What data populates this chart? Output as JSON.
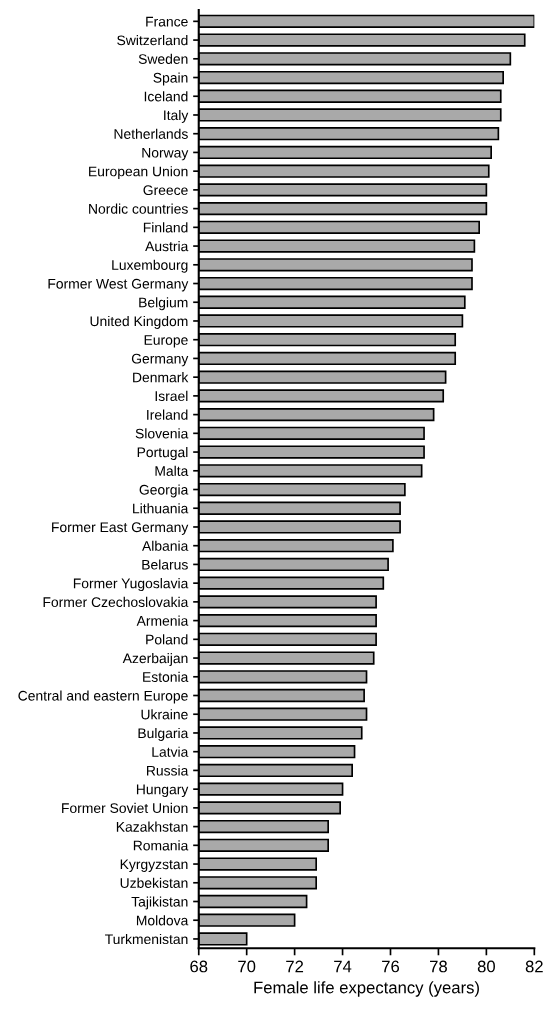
{
  "chart_data": {
    "type": "bar",
    "orientation": "horizontal",
    "xlabel": "Female life expectancy (years)",
    "categories": [
      "France",
      "Switzerland",
      "Sweden",
      "Spain",
      "Iceland",
      "Italy",
      "Netherlands",
      "Norway",
      "European Union",
      "Greece",
      "Nordic countries",
      "Finland",
      "Austria",
      "Luxembourg",
      "Former West Germany",
      "Belgium",
      "United Kingdom",
      "Europe",
      "Germany",
      "Denmark",
      "Israel",
      "Ireland",
      "Slovenia",
      "Portugal",
      "Malta",
      "Georgia",
      "Lithuania",
      "Former East Germany",
      "Albania",
      "Belarus",
      "Former Yugoslavia",
      "Former Czechoslovakia",
      "Armenia",
      "Poland",
      "Azerbaijan",
      "Estonia",
      "Central and eastern Europe",
      "Ukraine",
      "Bulgaria",
      "Latvia",
      "Russia",
      "Hungary",
      "Former Soviet Union",
      "Kazakhstan",
      "Romania",
      "Kyrgyzstan",
      "Uzbekistan",
      "Tajikistan",
      "Moldova",
      "Turkmenistan"
    ],
    "values": [
      82.0,
      81.6,
      81.0,
      80.7,
      80.6,
      80.6,
      80.5,
      80.2,
      80.1,
      80.0,
      80.0,
      79.7,
      79.5,
      79.4,
      79.4,
      79.1,
      79.0,
      78.7,
      78.7,
      78.3,
      78.2,
      77.8,
      77.4,
      77.4,
      77.3,
      76.6,
      76.4,
      76.4,
      76.1,
      75.9,
      75.7,
      75.4,
      75.4,
      75.4,
      75.3,
      75.0,
      74.9,
      75.0,
      74.8,
      74.5,
      74.4,
      74.0,
      73.9,
      73.4,
      73.4,
      72.9,
      72.9,
      72.5,
      72.0,
      70.0
    ],
    "color": "#a9a9a9",
    "xlim": [
      68,
      82
    ],
    "xticks": [
      68,
      70,
      72,
      74,
      76,
      78,
      80,
      82
    ],
    "grid": false
  }
}
